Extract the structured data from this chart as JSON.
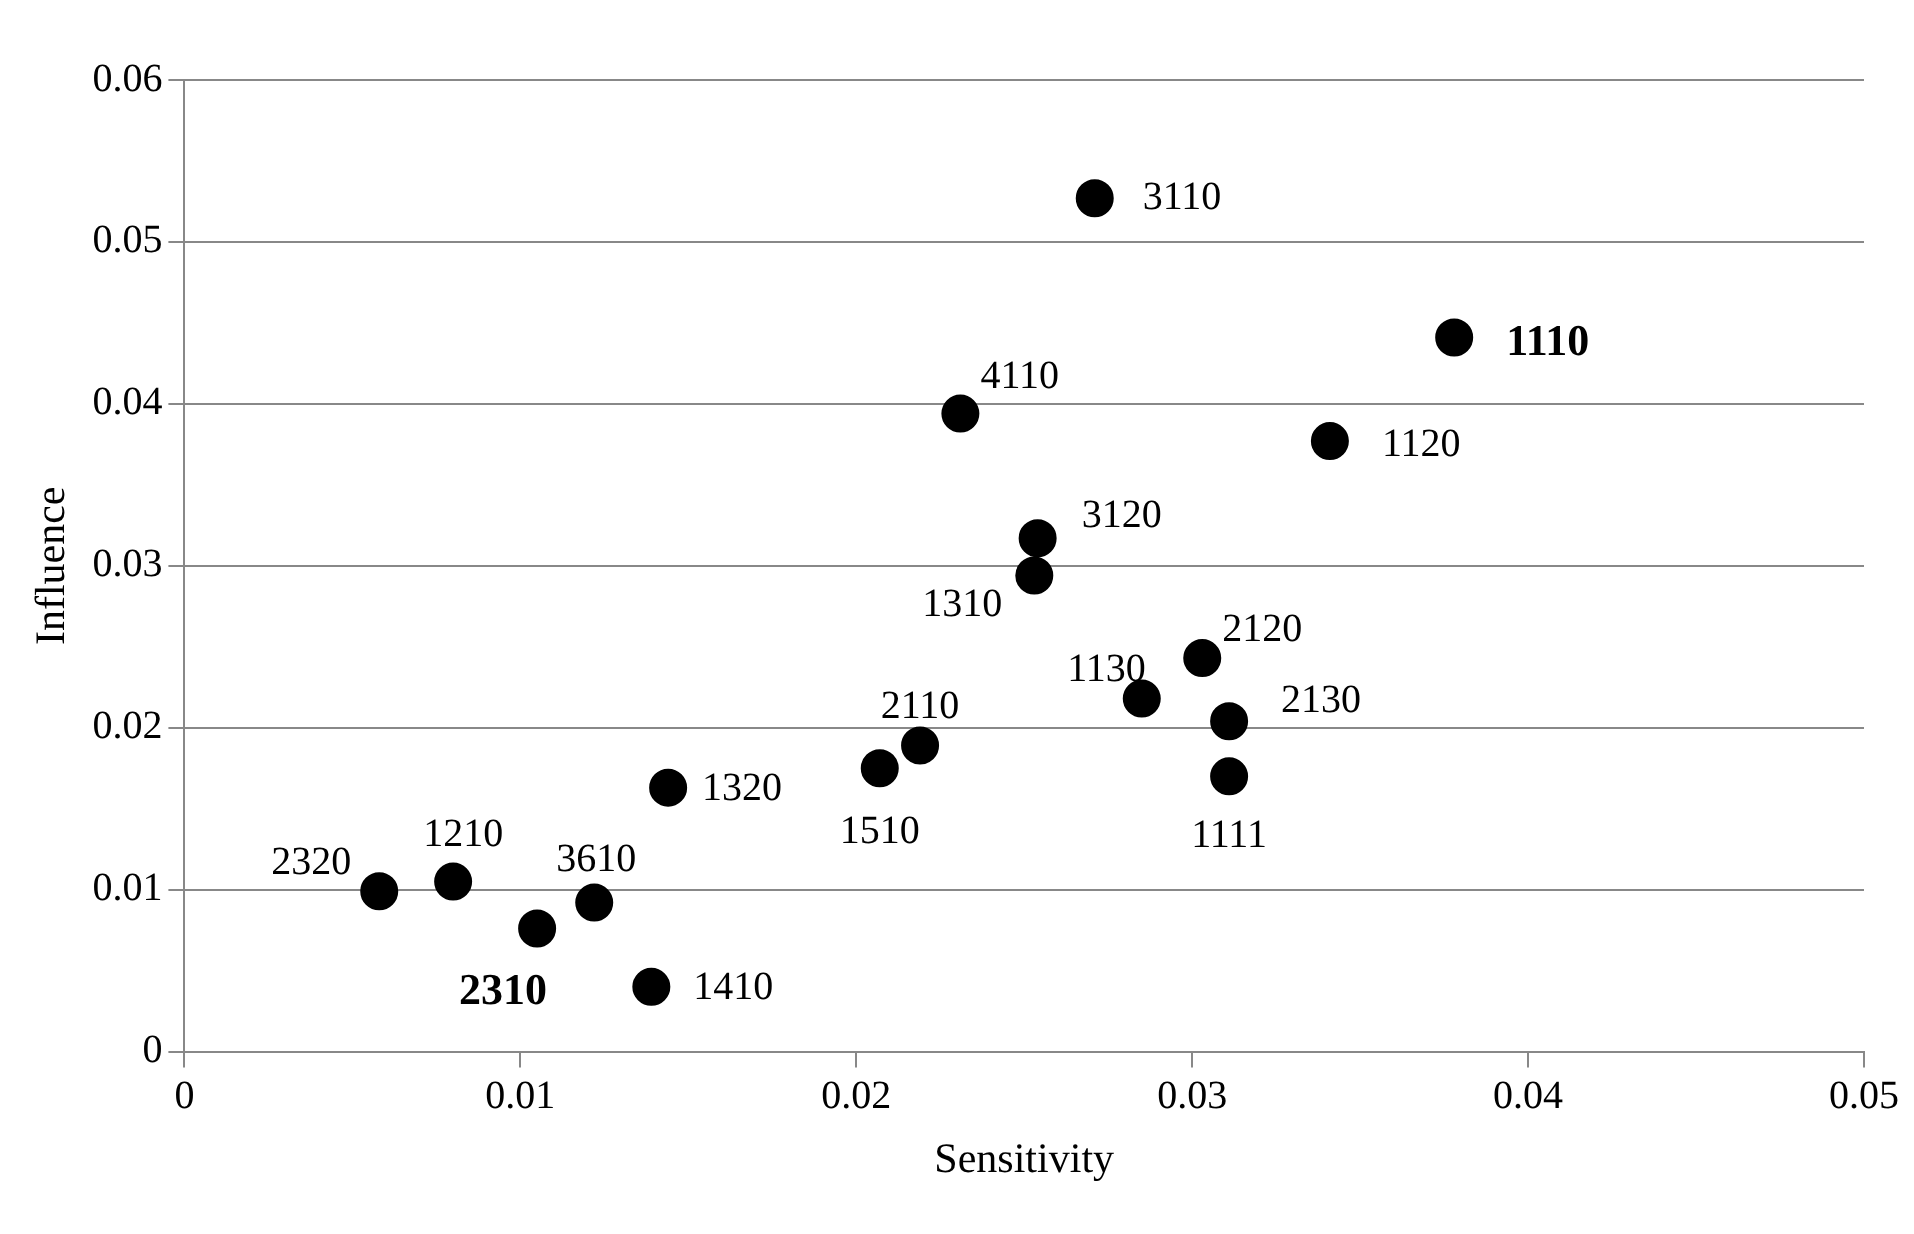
{
  "chart_data": {
    "type": "scatter",
    "xlabel": "Sensitivity",
    "ylabel": "Influence",
    "x": [
      0.0271,
      0.0378,
      0.0231,
      0.0341,
      0.0254,
      0.0253,
      0.0303,
      0.0285,
      0.0311,
      0.0311,
      0.0219,
      0.0207,
      0.0144,
      0.0058,
      0.008,
      0.0122,
      0.0105,
      0.0139
    ],
    "values": [
      0.0527,
      0.0441,
      0.0394,
      0.0377,
      0.0317,
      0.0294,
      0.0243,
      0.0218,
      0.0204,
      0.017,
      0.0189,
      0.0175,
      0.0163,
      0.0099,
      0.0105,
      0.0092,
      0.0076,
      0.004
    ],
    "annotations": [
      {
        "text": "3110",
        "x": 0.0271,
        "y": 0.0527
      },
      {
        "text": "1110",
        "x": 0.0378,
        "y": 0.0441
      },
      {
        "text": "4110",
        "x": 0.0231,
        "y": 0.0394
      },
      {
        "text": "1120",
        "x": 0.0341,
        "y": 0.0377
      },
      {
        "text": "3120",
        "x": 0.0254,
        "y": 0.0317
      },
      {
        "text": "1310",
        "x": 0.0253,
        "y": 0.0294
      },
      {
        "text": "2120",
        "x": 0.0303,
        "y": 0.0243
      },
      {
        "text": "1130",
        "x": 0.0285,
        "y": 0.0218
      },
      {
        "text": "2130",
        "x": 0.0311,
        "y": 0.0204
      },
      {
        "text": "1111",
        "x": 0.0311,
        "y": 0.017
      },
      {
        "text": "2110",
        "x": 0.0219,
        "y": 0.0189
      },
      {
        "text": "1510",
        "x": 0.0207,
        "y": 0.0175
      },
      {
        "text": "1320",
        "x": 0.0144,
        "y": 0.0163
      },
      {
        "text": "2320",
        "x": 0.0058,
        "y": 0.0099
      },
      {
        "text": "1210",
        "x": 0.008,
        "y": 0.0105
      },
      {
        "text": "3610",
        "x": 0.0122,
        "y": 0.0092
      },
      {
        "text": "2310",
        "x": 0.0105,
        "y": 0.0076
      },
      {
        "text": "1410",
        "x": 0.0139,
        "y": 0.004
      }
    ],
    "color": "#000000",
    "marker": "circle",
    "grid": "y",
    "xlim": [
      0,
      0.05
    ],
    "xticks": [
      0,
      0.01,
      0.02,
      0.03,
      0.04,
      0.05
    ],
    "ylim": [
      0,
      0.06
    ],
    "yticks": [
      0,
      0.01,
      0.02,
      0.03,
      0.04,
      0.05,
      0.06
    ]
  }
}
